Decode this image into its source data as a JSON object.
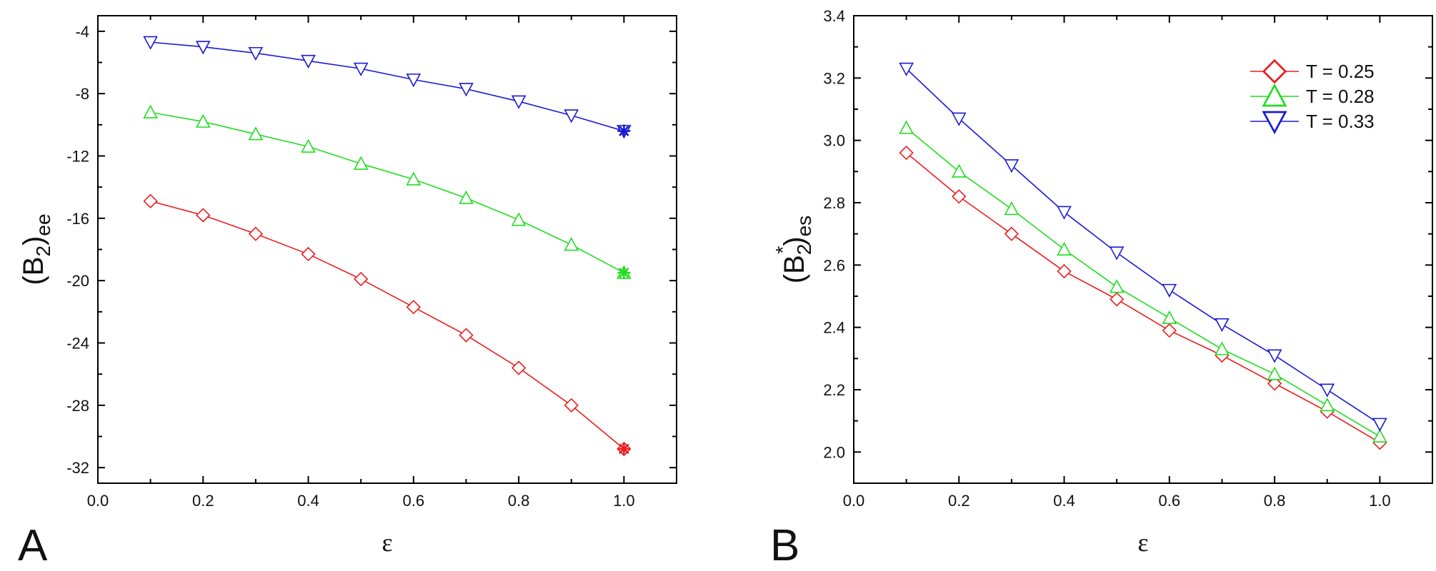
{
  "chart_data": [
    {
      "panel": "A",
      "type": "line",
      "xlabel": "ε",
      "ylabel": {
        "main": "(B",
        "sub": "2",
        "close": ")",
        "suffix": "ee"
      },
      "xlim": [
        0.0,
        1.1
      ],
      "ylim": [
        -33,
        -3
      ],
      "x_ticks": [
        "0.0",
        "0.2",
        "0.4",
        "0.6",
        "0.8",
        "1.0"
      ],
      "y_ticks": [
        "-4",
        "-8",
        "-12",
        "-16",
        "-20",
        "-24",
        "-28",
        "-32"
      ],
      "x": [
        0.1,
        0.2,
        0.3,
        0.4,
        0.5,
        0.6,
        0.7,
        0.8,
        0.9,
        1.0
      ],
      "series": [
        {
          "name": "T = 0.25",
          "color": "#ee1c1c",
          "marker": "diamond",
          "values": [
            -14.9,
            -15.8,
            -17.0,
            -18.3,
            -19.9,
            -21.7,
            -23.5,
            -25.6,
            -28.0,
            -30.8
          ],
          "special_marker": "asterisk",
          "special_value": -30.8
        },
        {
          "name": "T = 0.28",
          "color": "#22dd22",
          "marker": "triangle-up",
          "values": [
            -9.2,
            -9.8,
            -10.6,
            -11.4,
            -12.5,
            -13.5,
            -14.7,
            -16.1,
            -17.7,
            -19.5
          ],
          "special_marker": "asterisk",
          "special_value": -19.5
        },
        {
          "name": "T = 0.33",
          "color": "#1a1ad4",
          "marker": "triangle-down",
          "values": [
            -4.7,
            -5.0,
            -5.4,
            -5.9,
            -6.4,
            -7.1,
            -7.7,
            -8.5,
            -9.4,
            -10.4
          ],
          "special_marker": "asterisk",
          "special_value": -10.4
        }
      ]
    },
    {
      "panel": "B",
      "type": "line",
      "xlabel": "ε",
      "ylabel": {
        "main": "(B",
        "sub": "2",
        "sup": "*",
        "close": ")",
        "suffix": "es"
      },
      "xlim": [
        0.0,
        1.1
      ],
      "ylim": [
        1.9,
        3.4
      ],
      "x_ticks": [
        "0.0",
        "0.2",
        "0.4",
        "0.6",
        "0.8",
        "1.0"
      ],
      "y_ticks": [
        "2.0",
        "2.2",
        "2.4",
        "2.6",
        "2.8",
        "3.0",
        "3.2",
        "3.4"
      ],
      "legend_position": "top-right",
      "x": [
        0.1,
        0.2,
        0.3,
        0.4,
        0.5,
        0.6,
        0.7,
        0.8,
        0.9,
        1.0
      ],
      "series": [
        {
          "name": "T = 0.25",
          "color": "#ee1c1c",
          "marker": "diamond",
          "values": [
            2.96,
            2.82,
            2.7,
            2.58,
            2.49,
            2.39,
            2.31,
            2.22,
            2.13,
            2.03
          ]
        },
        {
          "name": "T = 0.28",
          "color": "#22dd22",
          "marker": "triangle-up",
          "values": [
            3.04,
            2.9,
            2.78,
            2.65,
            2.53,
            2.43,
            2.33,
            2.25,
            2.15,
            2.05
          ]
        },
        {
          "name": "T = 0.33",
          "color": "#1a1ad4",
          "marker": "triangle-down",
          "values": [
            3.23,
            3.07,
            2.92,
            2.77,
            2.64,
            2.52,
            2.41,
            2.31,
            2.2,
            2.09
          ]
        }
      ]
    }
  ]
}
